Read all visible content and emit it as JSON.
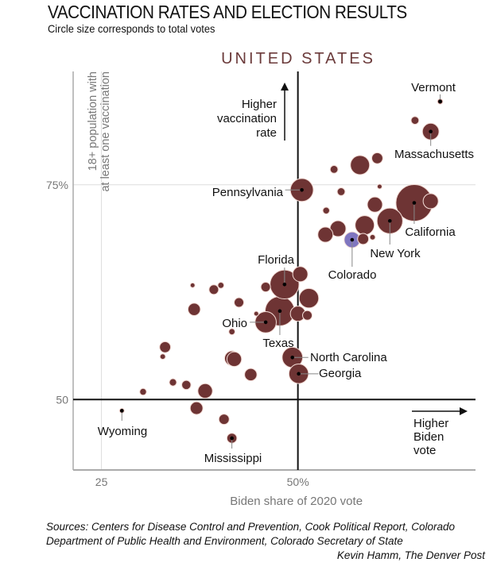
{
  "title": "VACCINATION RATES AND ELECTION RESULTS",
  "subtitle": "Circle size corresponds to total votes",
  "chart_data": {
    "type": "scatter",
    "title": "UNITED STATES",
    "xlabel": "Biden share of 2020 vote",
    "ylabel": [
      "18+ population with",
      "at least one vaccination"
    ],
    "xticks": [
      {
        "value": 25,
        "label": "25"
      },
      {
        "value": 50,
        "label": "50%"
      }
    ],
    "yticks": [
      {
        "value": 50,
        "label": "50"
      },
      {
        "value": 75,
        "label": "75%"
      }
    ],
    "xlim": [
      21.4,
      72.6
    ],
    "ylim": [
      41.8,
      88.2
    ],
    "size_encoding": "total votes",
    "colors": {
      "default": "#6e3434",
      "highlight": "#7f76c0"
    },
    "annotations": {
      "up": [
        "Higher",
        "vaccination",
        "rate"
      ],
      "right": [
        "Higher",
        "Biden",
        "vote"
      ]
    },
    "points": [
      {
        "label": "Vermont",
        "x": 68.1,
        "y": 84.7,
        "votes": 0.37
      },
      {
        "x": 64.9,
        "y": 82.5,
        "votes": 0.8
      },
      {
        "label": "Massachusetts",
        "x": 66.9,
        "y": 81.2,
        "votes": 3.6
      },
      {
        "x": 54.6,
        "y": 76.8,
        "votes": 0.8
      },
      {
        "x": 57.9,
        "y": 77.3,
        "votes": 4.8
      },
      {
        "x": 60.1,
        "y": 78.1,
        "votes": 1.6
      },
      {
        "label": "Pennsylvania",
        "x": 50.5,
        "y": 74.4,
        "votes": 6.9
      },
      {
        "x": 55.5,
        "y": 74.2,
        "votes": 0.8
      },
      {
        "x": 60.4,
        "y": 74.8,
        "votes": 0.3
      },
      {
        "x": 66.9,
        "y": 73.1,
        "votes": 3.0
      },
      {
        "label": "California",
        "x": 64.8,
        "y": 72.9,
        "votes": 17.5
      },
      {
        "x": 53.6,
        "y": 72.0,
        "votes": 0.6
      },
      {
        "x": 59.8,
        "y": 72.7,
        "votes": 3.0
      },
      {
        "label": "New York",
        "x": 61.7,
        "y": 70.8,
        "votes": 8.6
      },
      {
        "x": 58.5,
        "y": 70.3,
        "votes": 4.8
      },
      {
        "x": 55.1,
        "y": 69.9,
        "votes": 3.3
      },
      {
        "x": 53.5,
        "y": 69.2,
        "votes": 3.0
      },
      {
        "x": 58.3,
        "y": 68.7,
        "votes": 1.6
      },
      {
        "x": 59.5,
        "y": 68.9,
        "votes": 0.4
      },
      {
        "label": "Colorado",
        "x": 56.9,
        "y": 68.6,
        "votes": 3.3,
        "highlight": true
      },
      {
        "x": 50.3,
        "y": 64.6,
        "votes": 3.0
      },
      {
        "x": 45.9,
        "y": 63.1,
        "votes": 1.2
      },
      {
        "x": 36.6,
        "y": 63.3,
        "votes": 0.25
      },
      {
        "x": 40.2,
        "y": 63.3,
        "votes": 0.5
      },
      {
        "x": 39.3,
        "y": 62.8,
        "votes": 1.2
      },
      {
        "label": "Florida",
        "x": 48.3,
        "y": 63.4,
        "votes": 11.0
      },
      {
        "x": 51.4,
        "y": 61.8,
        "votes": 5.0
      },
      {
        "x": 42.5,
        "y": 61.3,
        "votes": 1.2
      },
      {
        "x": 36.8,
        "y": 60.5,
        "votes": 2.0
      },
      {
        "x": 44.7,
        "y": 60.0,
        "votes": 0.3
      },
      {
        "label": "Texas",
        "x": 47.7,
        "y": 60.3,
        "votes": 11.3
      },
      {
        "x": 50.0,
        "y": 60.0,
        "votes": 3.0
      },
      {
        "x": 51.2,
        "y": 59.8,
        "votes": 1.2
      },
      {
        "label": "Ohio",
        "x": 45.9,
        "y": 59.0,
        "votes": 5.9
      },
      {
        "x": 41.6,
        "y": 57.9,
        "votes": 0.5
      },
      {
        "x": 33.1,
        "y": 56.1,
        "votes": 1.6
      },
      {
        "x": 32.8,
        "y": 55.0,
        "votes": 0.4
      },
      {
        "x": 41.6,
        "y": 54.8,
        "votes": 2.8
      },
      {
        "x": 41.9,
        "y": 54.7,
        "votes": 2.8
      },
      {
        "x": 44.0,
        "y": 52.9,
        "votes": 2.0
      },
      {
        "label": "North Carolina",
        "x": 49.3,
        "y": 54.9,
        "votes": 5.5
      },
      {
        "label": "Georgia",
        "x": 50.1,
        "y": 53.0,
        "votes": 5.0
      },
      {
        "x": 34.1,
        "y": 52.0,
        "votes": 0.7
      },
      {
        "x": 35.8,
        "y": 51.7,
        "votes": 1.1
      },
      {
        "x": 38.2,
        "y": 51.0,
        "votes": 2.8
      },
      {
        "x": 30.3,
        "y": 50.9,
        "votes": 0.6
      },
      {
        "label": "Wyoming",
        "x": 27.6,
        "y": 48.7,
        "votes": 0.28
      },
      {
        "x": 37.1,
        "y": 49.0,
        "votes": 2.1
      },
      {
        "x": 40.6,
        "y": 47.7,
        "votes": 1.4
      },
      {
        "label": "Mississippi",
        "x": 41.6,
        "y": 45.5,
        "votes": 1.3
      }
    ]
  },
  "sources": [
    "Sources: Centers for Disease Control and Prevention, Cook Political Report, Colorado",
    "Department of Public Health and Environment, Colorado Secretary of State"
  ],
  "credit": "Kevin Hamm, The Denver Post"
}
